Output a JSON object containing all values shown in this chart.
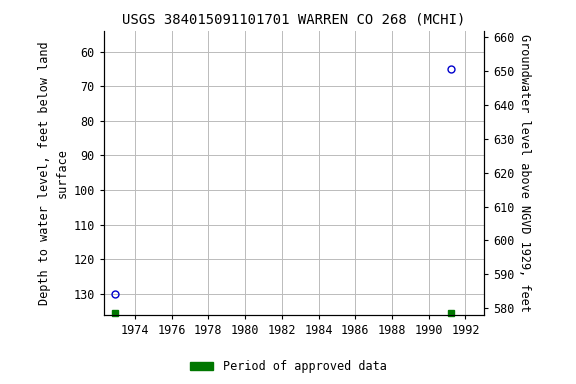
{
  "title": "USGS 384015091101701 WARREN CO 268 (MCHI)",
  "xlabel_ticks": [
    1974,
    1976,
    1978,
    1980,
    1982,
    1984,
    1986,
    1988,
    1990,
    1992
  ],
  "xlim": [
    1972.3,
    1993.0
  ],
  "ylim_left": [
    136,
    54
  ],
  "ylim_right": [
    578,
    662
  ],
  "yticks_left": [
    60,
    70,
    80,
    90,
    100,
    110,
    120,
    130
  ],
  "yticks_right": [
    580,
    590,
    600,
    610,
    620,
    630,
    640,
    650,
    660
  ],
  "ylabel_left": "Depth to water level, feet below land\nsurface",
  "ylabel_right": "Groundwater level above NGVD 1929, feet",
  "pt1_x": 1972.9,
  "pt1_y": 130,
  "pt2_x": 1991.2,
  "pt2_y": 65,
  "gm1_x": 1972.9,
  "gm2_x": 1991.2,
  "legend_label": "Period of approved data",
  "legend_color": "#007700",
  "point_color": "#0000cc",
  "grid_color": "#bbbbbb",
  "bg_color": "#ffffff",
  "title_fontsize": 10,
  "tick_fontsize": 8.5,
  "label_fontsize": 8.5
}
